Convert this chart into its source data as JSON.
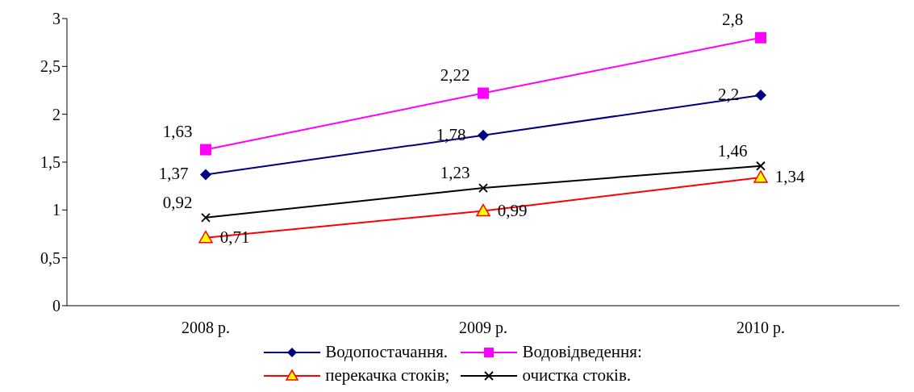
{
  "chart_data": {
    "type": "line",
    "categories": [
      "2008 р.",
      "2009 р.",
      "2010 р."
    ],
    "series": [
      {
        "name": "Водопостачання.",
        "color": "#000080",
        "values": [
          1.37,
          1.78,
          2.2
        ],
        "value_labels": [
          "1,37",
          "1,78",
          "2,2"
        ],
        "marker": "diamond"
      },
      {
        "name": "Водовідведення:",
        "color": "#ff00ff",
        "values": [
          1.63,
          2.22,
          2.8
        ],
        "value_labels": [
          "1,63",
          "2,22",
          "2,8"
        ],
        "marker": "square"
      },
      {
        "name": "перекачка стоків;",
        "color": "#ff0000",
        "values": [
          0.71,
          0.99,
          1.34
        ],
        "value_labels": [
          "0,71",
          "0,99",
          "1,34"
        ],
        "marker": "triangle"
      },
      {
        "name": "очистка стоків.",
        "color": "#000000",
        "values": [
          0.92,
          1.23,
          1.46
        ],
        "value_labels": [
          "0,92",
          "1,23",
          "1,46"
        ],
        "marker": "cross"
      }
    ],
    "ylim": [
      0,
      3
    ],
    "yticks": [
      0,
      {
        "value": 0.5,
        "label": "0,5"
      },
      1,
      {
        "value": 1.5,
        "label": "1,5"
      },
      2,
      {
        "value": 2.5,
        "label": "2,5"
      },
      3
    ],
    "grid": false,
    "legend": "bottom",
    "line_style": "solid"
  }
}
